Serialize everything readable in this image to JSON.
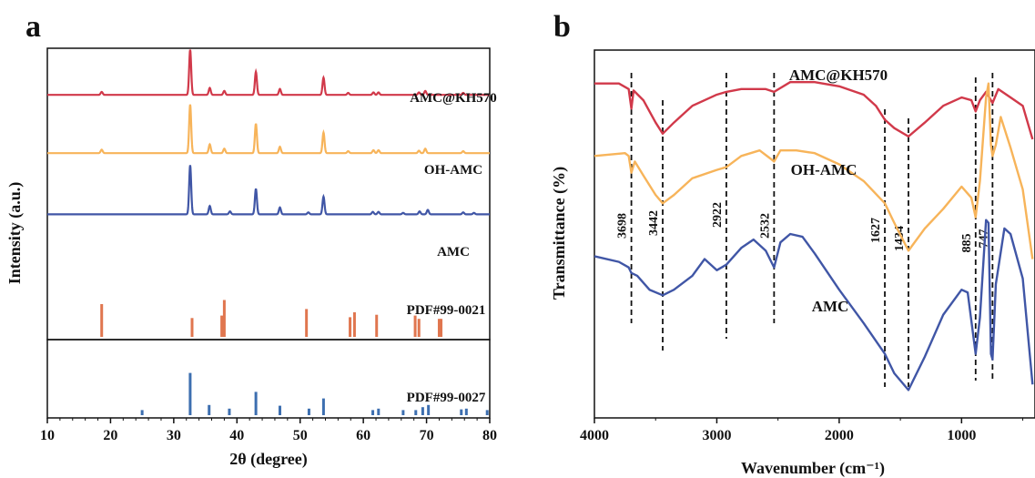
{
  "panels": [
    "a",
    "b"
  ],
  "chart_data": [
    {
      "type": "line",
      "panel": "a",
      "xlabel": "2θ (degree)",
      "ylabel": "Intensity (a.u.)",
      "xlim": [
        10,
        80
      ],
      "xticks": [
        10,
        20,
        30,
        40,
        50,
        60,
        70,
        80
      ],
      "series": [
        {
          "name": "AMC@KH570",
          "color": "#d1394a",
          "baseline": 0.84,
          "scale": 0.9,
          "peaks": [
            [
              18.6,
              0.06
            ],
            [
              32.6,
              0.92
            ],
            [
              35.7,
              0.14
            ],
            [
              38.0,
              0.08
            ],
            [
              43.0,
              0.47
            ],
            [
              46.8,
              0.12
            ],
            [
              53.7,
              0.35
            ],
            [
              57.6,
              0.04
            ],
            [
              61.6,
              0.05
            ],
            [
              62.4,
              0.05
            ],
            [
              68.8,
              0.05
            ],
            [
              69.8,
              0.08
            ],
            [
              75.8,
              0.04
            ]
          ]
        },
        {
          "name": "OH-AMC",
          "color": "#f7b45a",
          "baseline": 0.64,
          "scale": 0.9,
          "peaks": [
            [
              18.6,
              0.07
            ],
            [
              32.6,
              0.99
            ],
            [
              35.7,
              0.18
            ],
            [
              38.0,
              0.09
            ],
            [
              43.0,
              0.6
            ],
            [
              46.8,
              0.13
            ],
            [
              53.7,
              0.42
            ],
            [
              57.6,
              0.04
            ],
            [
              61.6,
              0.06
            ],
            [
              62.4,
              0.06
            ],
            [
              68.8,
              0.05
            ],
            [
              69.8,
              0.09
            ],
            [
              75.8,
              0.04
            ]
          ]
        },
        {
          "name": "AMC",
          "color": "#4056a6",
          "baseline": 0.43,
          "scale": 0.9,
          "peaks": [
            [
              32.6,
              1.0
            ],
            [
              35.7,
              0.17
            ],
            [
              38.9,
              0.06
            ],
            [
              43.0,
              0.52
            ],
            [
              46.8,
              0.14
            ],
            [
              51.3,
              0.04
            ],
            [
              53.7,
              0.36
            ],
            [
              61.5,
              0.05
            ],
            [
              62.4,
              0.05
            ],
            [
              66.3,
              0.03
            ],
            [
              68.9,
              0.06
            ],
            [
              70.2,
              0.09
            ],
            [
              75.8,
              0.04
            ],
            [
              77.5,
              0.03
            ]
          ]
        }
      ],
      "references": [
        {
          "name": "PDF#99-0021",
          "color": "#e0764f",
          "sticks": [
            [
              18.6,
              0.4
            ],
            [
              32.9,
              0.23
            ],
            [
              37.6,
              0.26
            ],
            [
              38.0,
              0.45
            ],
            [
              51.0,
              0.34
            ],
            [
              57.9,
              0.24
            ],
            [
              58.6,
              0.3
            ],
            [
              62.1,
              0.27
            ],
            [
              68.2,
              0.26
            ],
            [
              68.8,
              0.22
            ],
            [
              72.0,
              0.22
            ],
            [
              72.3,
              0.22
            ]
          ]
        },
        {
          "name": "PDF#99-0027",
          "color": "#3d6fb0",
          "sticks": [
            [
              25.0,
              0.07
            ],
            [
              32.6,
              0.58
            ],
            [
              35.6,
              0.14
            ],
            [
              38.8,
              0.09
            ],
            [
              43.0,
              0.32
            ],
            [
              46.8,
              0.13
            ],
            [
              51.4,
              0.09
            ],
            [
              53.7,
              0.23
            ],
            [
              61.5,
              0.07
            ],
            [
              62.4,
              0.09
            ],
            [
              66.3,
              0.07
            ],
            [
              68.3,
              0.07
            ],
            [
              69.4,
              0.11
            ],
            [
              70.3,
              0.14
            ],
            [
              75.5,
              0.08
            ],
            [
              76.3,
              0.09
            ],
            [
              79.6,
              0.07
            ]
          ]
        }
      ]
    },
    {
      "type": "line",
      "panel": "b",
      "xlabel": "Wavenumber (cm⁻¹)",
      "ylabel": "Transmittance (%)",
      "xlim": [
        4000,
        400
      ],
      "xticks": [
        4000,
        3000,
        2000,
        1000
      ],
      "series": [
        {
          "name": "AMC@KH570",
          "color": "#d1394a",
          "points": [
            [
              4000,
              0.9
            ],
            [
              3800,
              0.9
            ],
            [
              3720,
              0.88
            ],
            [
              3698,
              0.81
            ],
            [
              3680,
              0.875
            ],
            [
              3600,
              0.84
            ],
            [
              3500,
              0.76
            ],
            [
              3442,
              0.72
            ],
            [
              3350,
              0.76
            ],
            [
              3200,
              0.82
            ],
            [
              3000,
              0.86
            ],
            [
              2922,
              0.87
            ],
            [
              2800,
              0.88
            ],
            [
              2600,
              0.88
            ],
            [
              2532,
              0.87
            ],
            [
              2400,
              0.905
            ],
            [
              2200,
              0.905
            ],
            [
              2000,
              0.89
            ],
            [
              1800,
              0.86
            ],
            [
              1700,
              0.82
            ],
            [
              1627,
              0.77
            ],
            [
              1550,
              0.74
            ],
            [
              1434,
              0.71
            ],
            [
              1300,
              0.76
            ],
            [
              1150,
              0.82
            ],
            [
              1000,
              0.85
            ],
            [
              920,
              0.84
            ],
            [
              885,
              0.8
            ],
            [
              850,
              0.84
            ],
            [
              800,
              0.87
            ],
            [
              760,
              0.84
            ],
            [
              747,
              0.83
            ],
            [
              700,
              0.88
            ],
            [
              600,
              0.85
            ],
            [
              500,
              0.82
            ],
            [
              420,
              0.7
            ]
          ]
        },
        {
          "name": "OH-AMC",
          "color": "#f7b45a",
          "points": [
            [
              4000,
              0.64
            ],
            [
              3750,
              0.65
            ],
            [
              3720,
              0.64
            ],
            [
              3698,
              0.58
            ],
            [
              3670,
              0.62
            ],
            [
              3600,
              0.57
            ],
            [
              3500,
              0.5
            ],
            [
              3442,
              0.47
            ],
            [
              3350,
              0.5
            ],
            [
              3200,
              0.56
            ],
            [
              3000,
              0.59
            ],
            [
              2922,
              0.6
            ],
            [
              2800,
              0.64
            ],
            [
              2650,
              0.66
            ],
            [
              2560,
              0.63
            ],
            [
              2532,
              0.62
            ],
            [
              2480,
              0.66
            ],
            [
              2350,
              0.66
            ],
            [
              2200,
              0.65
            ],
            [
              2000,
              0.61
            ],
            [
              1800,
              0.55
            ],
            [
              1627,
              0.47
            ],
            [
              1550,
              0.4
            ],
            [
              1434,
              0.3
            ],
            [
              1300,
              0.38
            ],
            [
              1150,
              0.45
            ],
            [
              1000,
              0.53
            ],
            [
              920,
              0.49
            ],
            [
              885,
              0.42
            ],
            [
              850,
              0.55
            ],
            [
              800,
              0.85
            ],
            [
              780,
              0.9
            ],
            [
              760,
              0.68
            ],
            [
              747,
              0.64
            ],
            [
              720,
              0.68
            ],
            [
              680,
              0.78
            ],
            [
              600,
              0.67
            ],
            [
              500,
              0.52
            ],
            [
              420,
              0.27
            ]
          ]
        },
        {
          "name": "AMC",
          "color": "#4056a6",
          "points": [
            [
              4000,
              0.28
            ],
            [
              3800,
              0.26
            ],
            [
              3720,
              0.24
            ],
            [
              3698,
              0.22
            ],
            [
              3650,
              0.21
            ],
            [
              3550,
              0.16
            ],
            [
              3442,
              0.14
            ],
            [
              3350,
              0.16
            ],
            [
              3200,
              0.21
            ],
            [
              3100,
              0.27
            ],
            [
              3000,
              0.23
            ],
            [
              2922,
              0.25
            ],
            [
              2800,
              0.31
            ],
            [
              2700,
              0.34
            ],
            [
              2600,
              0.3
            ],
            [
              2532,
              0.24
            ],
            [
              2480,
              0.33
            ],
            [
              2400,
              0.36
            ],
            [
              2300,
              0.35
            ],
            [
              2200,
              0.29
            ],
            [
              2000,
              0.16
            ],
            [
              1800,
              0.04
            ],
            [
              1627,
              -0.07
            ],
            [
              1550,
              -0.14
            ],
            [
              1434,
              -0.2
            ],
            [
              1300,
              -0.08
            ],
            [
              1150,
              0.07
            ],
            [
              1000,
              0.16
            ],
            [
              950,
              0.15
            ],
            [
              885,
              -0.07
            ],
            [
              850,
              0.06
            ],
            [
              800,
              0.41
            ],
            [
              780,
              0.4
            ],
            [
              760,
              -0.07
            ],
            [
              747,
              -0.09
            ],
            [
              720,
              0.18
            ],
            [
              650,
              0.38
            ],
            [
              600,
              0.36
            ],
            [
              500,
              0.2
            ],
            [
              420,
              -0.18
            ]
          ]
        }
      ],
      "peak_lines": [
        {
          "label": "3698",
          "x": 3698
        },
        {
          "label": "3442",
          "x": 3442
        },
        {
          "label": "2922",
          "x": 2922
        },
        {
          "label": "2532",
          "x": 2532
        },
        {
          "label": "1627",
          "x": 1627
        },
        {
          "label": "1434",
          "x": 1434
        },
        {
          "label": "885",
          "x": 885
        },
        {
          "label": "747",
          "x": 747
        }
      ]
    }
  ]
}
